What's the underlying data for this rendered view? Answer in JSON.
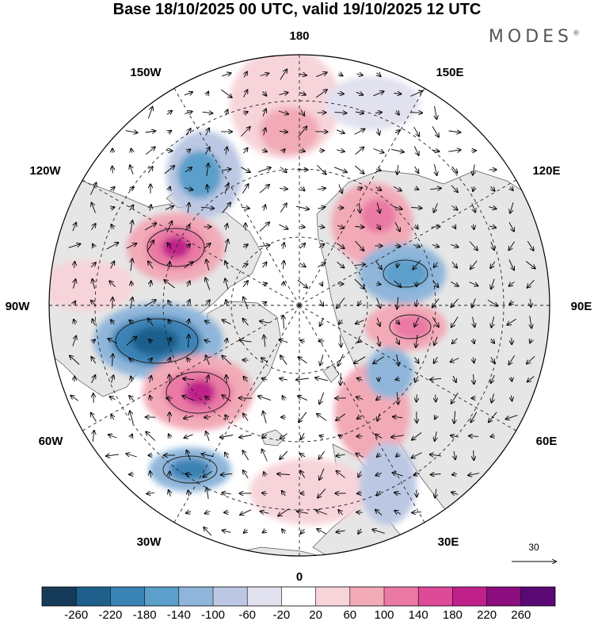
{
  "title": "Base 18/10/2025 00 UTC, valid 19/10/2025 12 UTC",
  "brand": "MODES",
  "brand_mark": "®",
  "longitude_labels": {
    "lon_180": "180",
    "lon_150e": "150E",
    "lon_120e": "120E",
    "lon_90e": "90E",
    "lon_60e": "60E",
    "lon_30e": "30E",
    "lon_0": "0",
    "lon_30w": "30W",
    "lon_60w": "60W",
    "lon_90w": "90W",
    "lon_120w": "120W",
    "lon_150w": "150W"
  },
  "vector_scale": {
    "label": "30"
  },
  "colorbar": {
    "ticks": [
      "-260",
      "-220",
      "-180",
      "-140",
      "-100",
      "-60",
      "-20",
      "20",
      "60",
      "100",
      "140",
      "180",
      "220",
      "260"
    ],
    "colors": [
      "#163b59",
      "#1f5f8c",
      "#3a83b5",
      "#5b9fcb",
      "#8fb6da",
      "#bcc8e3",
      "#e1e1ef",
      "#ffffff",
      "#f7d4d9",
      "#f2aab7",
      "#ea79a4",
      "#dc4a98",
      "#c0208a",
      "#8b0f7e",
      "#5a0874"
    ]
  },
  "anomaly_centers": [
    {
      "sign": "positive",
      "value": 120
    },
    {
      "sign": "negative",
      "value": -140
    },
    {
      "sign": "positive",
      "value": 200
    },
    {
      "sign": "negative",
      "value": -200
    },
    {
      "sign": "positive",
      "value": 220
    },
    {
      "sign": "negative",
      "value": -120
    },
    {
      "sign": "positive",
      "value": 140
    },
    {
      "sign": "positive",
      "value": 150
    },
    {
      "sign": "negative",
      "value": -150
    },
    {
      "sign": "positive",
      "value": 160
    },
    {
      "sign": "negative",
      "value": -120
    },
    {
      "sign": "positive",
      "value": 80
    },
    {
      "sign": "negative",
      "value": -80
    },
    {
      "sign": "negative",
      "value": -70
    },
    {
      "sign": "positive",
      "value": 90
    }
  ]
}
